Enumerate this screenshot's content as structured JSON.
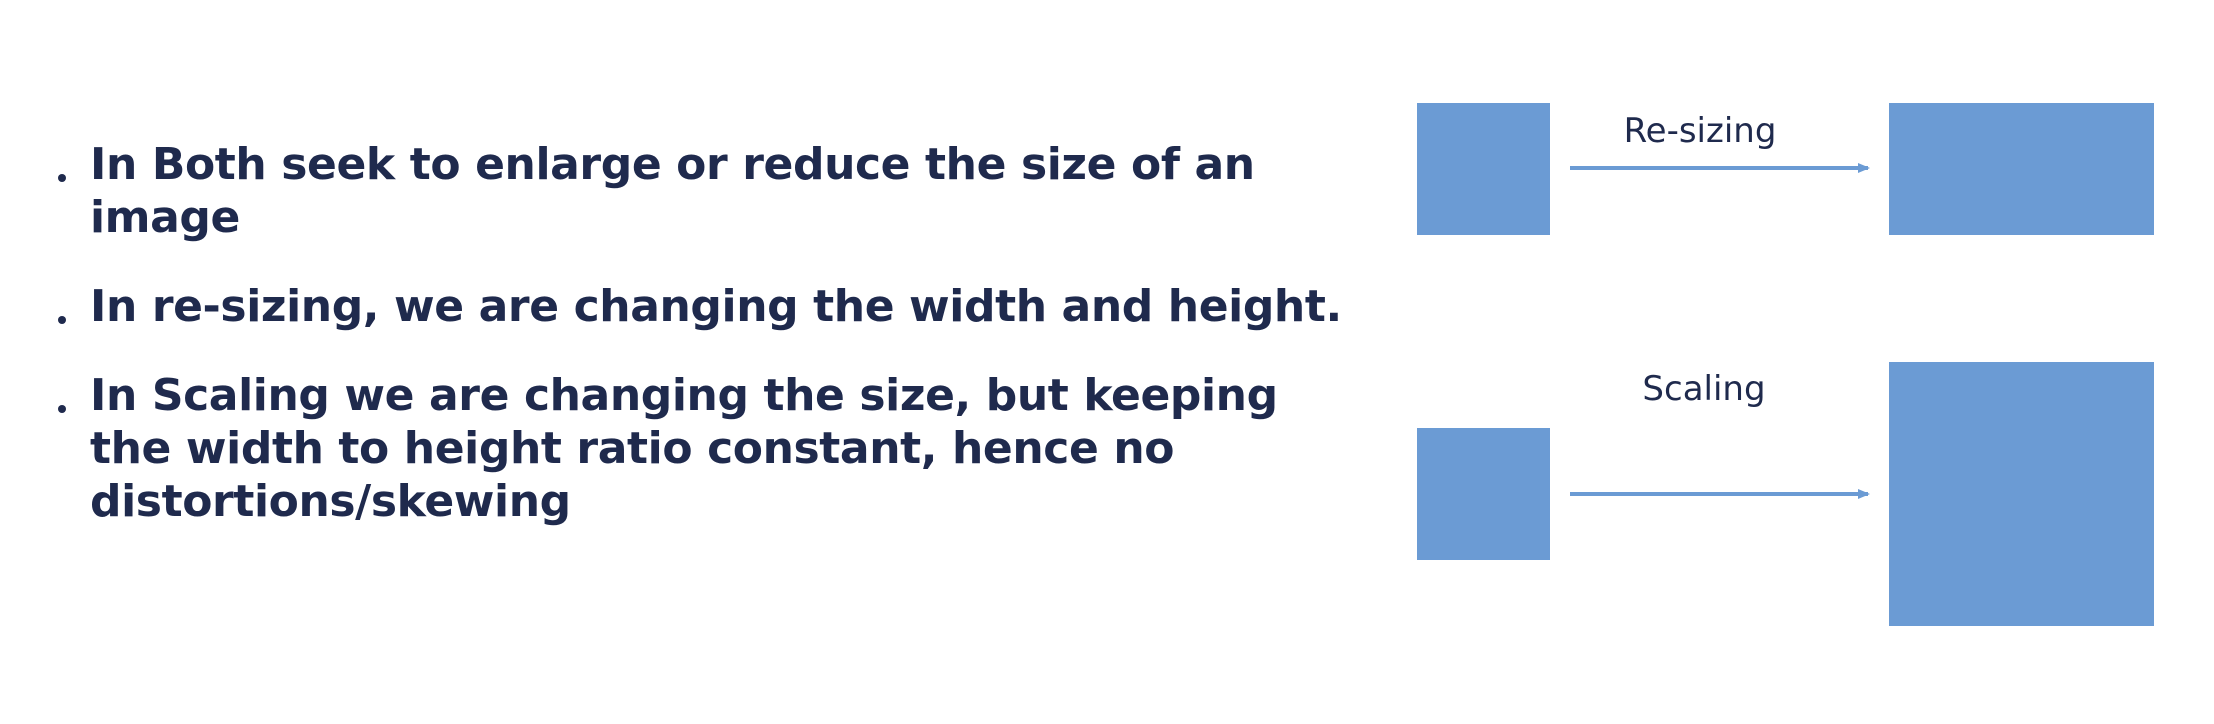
{
  "bullets": [
    "In Both seek to enlarge or reduce the size of an image",
    "In re-sizing, we are changing the width and height.",
    "In Scaling we are changing the size, but keeping the width to height ratio constant, hence no distortions/skewing"
  ],
  "diagram": {
    "resizing_label": "Re-sizing",
    "scaling_label": "Scaling",
    "box_color": "#6b9bd4",
    "arrow_color": "#6b9bd4"
  }
}
